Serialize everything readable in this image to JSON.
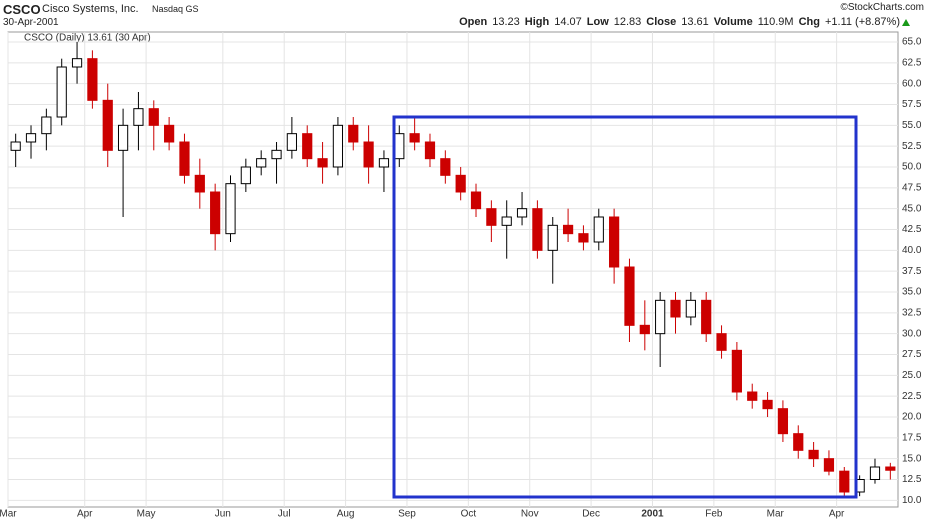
{
  "chart_data": {
    "type": "candlestick",
    "symbol": "CSCO",
    "company": "Cisco Systems, Inc.",
    "exchange": "Nasdaq GS",
    "date": "30-Apr-2001",
    "source": "©StockCharts.com",
    "quote": [
      {
        "label": "Open",
        "value": 13.23
      },
      {
        "label": "High",
        "value": 14.07
      },
      {
        "label": "Low",
        "value": 12.83
      },
      {
        "label": "Close",
        "value": 13.61
      },
      {
        "label": "Volume",
        "value": "110.9M"
      },
      {
        "label": "Chg",
        "value": "+1.11 (+8.87%)"
      }
    ],
    "legend": "CSCO (Daily) 13.61 (30 Apr)",
    "categories": [
      "Mar",
      null,
      null,
      null,
      null,
      "Apr",
      null,
      null,
      null,
      "May",
      null,
      null,
      null,
      null,
      "Jun",
      null,
      null,
      null,
      "Jul",
      null,
      null,
      null,
      "Aug",
      null,
      null,
      null,
      "Sep",
      null,
      null,
      null,
      "Oct",
      null,
      null,
      null,
      "Nov",
      null,
      null,
      null,
      "Dec",
      null,
      null,
      null,
      "2001",
      null,
      null,
      null,
      "Feb",
      null,
      null,
      null,
      "Mar",
      null,
      null,
      null,
      "Apr",
      null,
      null,
      null
    ],
    "open": [
      52,
      53,
      54,
      56,
      62,
      63,
      58,
      52,
      55,
      57,
      55,
      53,
      49,
      47,
      42,
      48,
      50,
      51,
      52,
      54,
      51,
      50,
      55,
      53,
      50,
      51,
      54,
      53,
      51,
      49,
      47,
      45,
      43,
      44,
      45,
      40,
      43,
      42,
      41,
      44,
      38,
      31,
      30,
      34,
      32,
      34,
      30,
      28,
      23,
      22,
      21,
      18,
      16,
      15,
      13.5,
      11,
      12.5,
      14
    ],
    "high": [
      54,
      55,
      57,
      63,
      65,
      64,
      60,
      57,
      59,
      58,
      56,
      54,
      51,
      48,
      49,
      51,
      52,
      53,
      56,
      55,
      53,
      56,
      56,
      55,
      52,
      55,
      56,
      54,
      52,
      50,
      48,
      46,
      46,
      47,
      46,
      44,
      45,
      43,
      45,
      45,
      39,
      34,
      35,
      35,
      35,
      35,
      31,
      29,
      24,
      23,
      22,
      19,
      17,
      16,
      14,
      13,
      15,
      14.5
    ],
    "low": [
      50,
      51,
      52,
      55,
      60,
      57,
      50,
      44,
      52,
      52,
      52,
      48,
      45,
      40,
      41,
      47,
      49,
      48,
      51,
      50,
      48,
      49,
      52,
      48,
      47,
      50,
      52,
      50,
      48,
      46,
      44,
      41,
      39,
      43,
      39,
      36,
      41,
      40,
      40,
      36,
      29,
      28,
      26,
      30,
      31,
      29,
      27,
      22,
      21,
      20,
      17,
      15,
      14,
      13,
      10.5,
      10.5,
      12,
      12.5
    ],
    "close": [
      53,
      54,
      56,
      62,
      63,
      58,
      52,
      55,
      57,
      55,
      53,
      49,
      47,
      42,
      48,
      50,
      51,
      52,
      54,
      51,
      50,
      55,
      53,
      50,
      51,
      54,
      53,
      51,
      49,
      47,
      45,
      43,
      44,
      45,
      40,
      43,
      42,
      41,
      44,
      38,
      31,
      30,
      34,
      32,
      34,
      30,
      28,
      23,
      22,
      21,
      18,
      16,
      15,
      13.5,
      11,
      12.5,
      14,
      13.61
    ],
    "up_color": "#000000",
    "down_color": "#cc0000",
    "box_color": "#2233cc",
    "ylim": [
      9.2,
      66.2
    ],
    "yticks": [
      {
        "value": 10,
        "label": "10.0"
      },
      12.5,
      {
        "value": 15,
        "label": "15.0"
      },
      17.5,
      {
        "value": 20,
        "label": "20.0"
      },
      22.5,
      {
        "value": 25,
        "label": "25.0"
      },
      27.5,
      {
        "value": 30,
        "label": "30.0"
      },
      32.5,
      {
        "value": 35,
        "label": "35.0"
      },
      37.5,
      {
        "value": 40,
        "label": "40.0"
      },
      42.5,
      {
        "value": 45,
        "label": "45.0"
      },
      47.5,
      {
        "value": 50,
        "label": "50.0"
      },
      52.5,
      {
        "value": 55,
        "label": "55.0"
      },
      57.5,
      {
        "value": 60,
        "label": "60.0"
      },
      62.5,
      {
        "value": 65,
        "label": "65.0"
      }
    ],
    "grid": true
  }
}
